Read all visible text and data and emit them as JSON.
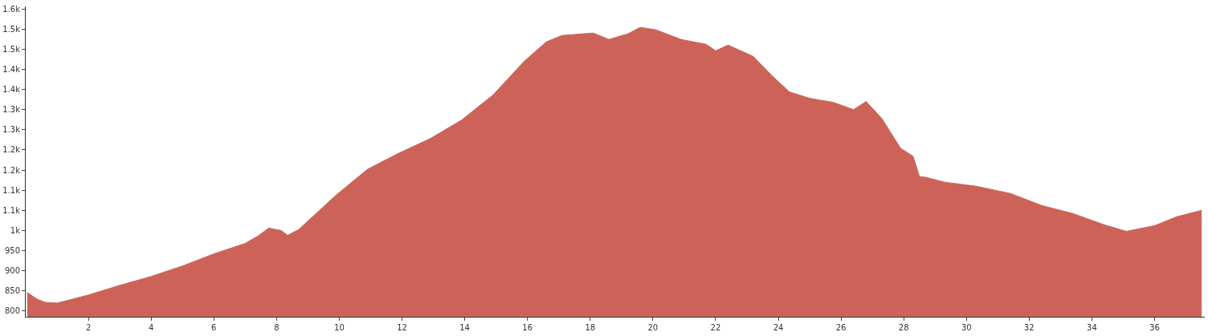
{
  "chart_data": {
    "type": "area",
    "color": "#cd6358",
    "x": [
      0.05,
      0.36,
      0.61,
      1.0,
      1.5,
      2.0,
      3.0,
      4.0,
      5.0,
      6.0,
      7.0,
      7.4,
      7.75,
      8.15,
      8.35,
      8.7,
      9.9,
      10.9,
      11.9,
      12.9,
      13.9,
      14.9,
      15.9,
      16.6,
      17.1,
      18.1,
      18.6,
      19.2,
      19.6,
      20.1,
      20.9,
      21.7,
      22.0,
      22.4,
      23.2,
      23.8,
      24.35,
      25.0,
      25.75,
      26.4,
      26.8,
      27.3,
      27.9,
      28.3,
      28.5,
      28.7,
      29.3,
      30.3,
      31.4,
      32.4,
      33.4,
      34.4,
      35.1,
      36.0,
      36.7,
      37.5
    ],
    "values": [
      846,
      830,
      822,
      820,
      830,
      840,
      864,
      886,
      912,
      942,
      968,
      986,
      1006,
      1000,
      988,
      1002,
      1088,
      1152,
      1192,
      1228,
      1274,
      1336,
      1420,
      1468,
      1484,
      1490,
      1474,
      1488,
      1504,
      1498,
      1474,
      1462,
      1446,
      1460,
      1432,
      1384,
      1344,
      1328,
      1318,
      1300,
      1320,
      1278,
      1204,
      1184,
      1134,
      1132,
      1120,
      1110,
      1092,
      1062,
      1042,
      1014,
      998,
      1012,
      1034,
      1050
    ],
    "xlim": [
      0,
      37.6
    ],
    "xticks": [
      2,
      4,
      6,
      8,
      10,
      12,
      14,
      16,
      18,
      20,
      22,
      24,
      26,
      28,
      30,
      32,
      34,
      36
    ],
    "ylim": [
      786,
      1556
    ],
    "yticks": [
      800,
      850,
      900,
      950,
      {
        "value": 1000,
        "label": "1k"
      },
      {
        "value": 1050,
        "label": "1.1k"
      },
      {
        "value": 1100,
        "label": "1.1k"
      },
      {
        "value": 1150,
        "label": "1.2k"
      },
      {
        "value": 1200,
        "label": "1.2k"
      },
      {
        "value": 1250,
        "label": "1.3k"
      },
      {
        "value": 1300,
        "label": "1.3k"
      },
      {
        "value": 1350,
        "label": "1.4k"
      },
      {
        "value": 1400,
        "label": "1.4k"
      },
      {
        "value": 1450,
        "label": "1.5k"
      },
      {
        "value": 1500,
        "label": "1.5k"
      },
      {
        "value": 1550,
        "label": "1.6k"
      }
    ]
  }
}
